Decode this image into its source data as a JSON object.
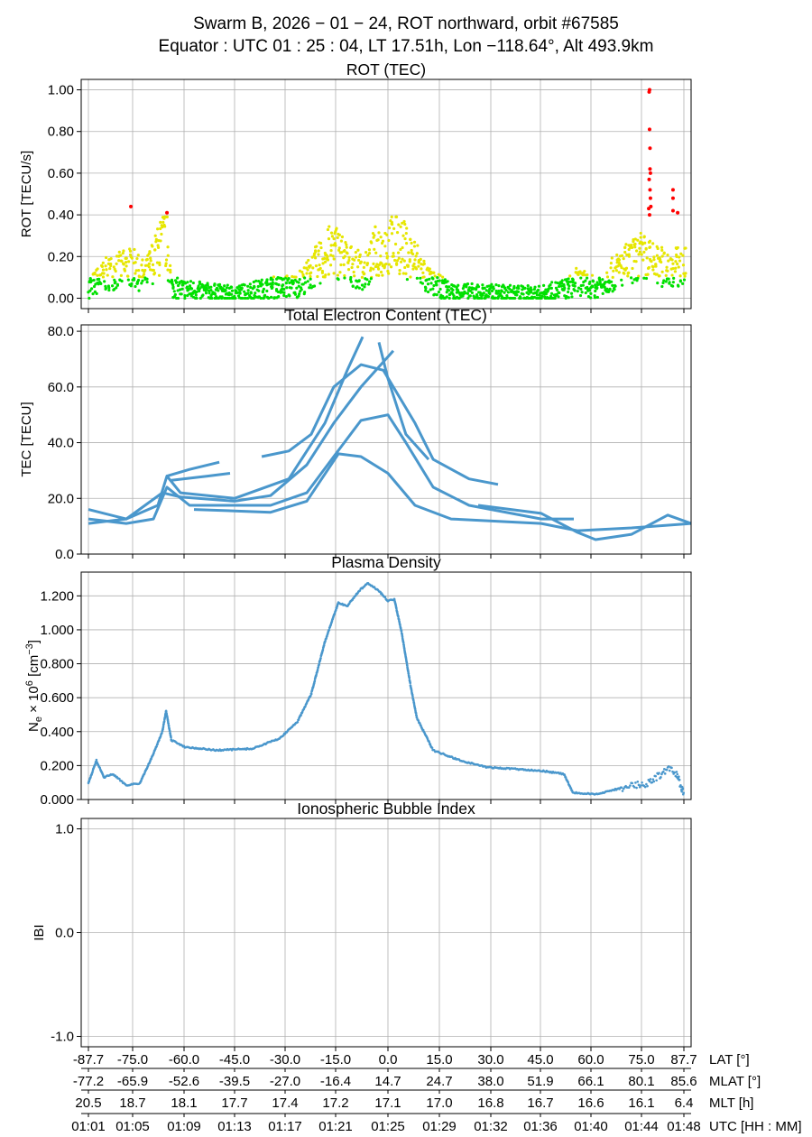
{
  "title": {
    "line1": "Swarm B,  2026 − 01 − 24,  ROT northward,  orbit #67585",
    "line2": "Equator :  UTC 01 : 25 : 04,  LT 17.51h,  Lon  −118.64°,  Alt 493.9km"
  },
  "colors": {
    "series": "#4a97cc",
    "rot_low": "#00e000",
    "rot_mid": "#e6e600",
    "rot_high": "#ff0000",
    "grid": "#b0b0b0"
  },
  "x_axis": {
    "rows": [
      {
        "label": "LAT [°]",
        "values": [
          "-87.7",
          "-75.0",
          "-60.0",
          "-45.0",
          "-30.0",
          "-15.0",
          "0.0",
          "15.0",
          "30.0",
          "45.0",
          "60.0",
          "75.0",
          "87.7"
        ]
      },
      {
        "label": "MLAT [°]",
        "values": [
          "-77.2",
          "-65.9",
          "-52.6",
          "-39.5",
          "-27.0",
          "-16.4",
          "14.7",
          "24.7",
          "38.0",
          "51.9",
          "66.1",
          "80.1",
          "85.6"
        ]
      },
      {
        "label": "MLT [h]",
        "values": [
          "20.5",
          "18.7",
          "18.1",
          "17.7",
          "17.4",
          "17.2",
          "17.1",
          "17.0",
          "16.8",
          "16.7",
          "16.6",
          "16.1",
          "6.4"
        ]
      },
      {
        "label": "UTC [HH : MM]",
        "values": [
          "01:01",
          "01:05",
          "01:09",
          "01:13",
          "01:17",
          "01:21",
          "01:25",
          "01:29",
          "01:32",
          "01:36",
          "01:40",
          "01:44",
          "01:48"
        ]
      }
    ]
  },
  "chart_data": [
    {
      "type": "scatter",
      "title": "ROT (TEC)",
      "ylabel": "ROT [TECU/s]",
      "ylim": [
        -0.05,
        1.05
      ],
      "yticks": [
        "0.00",
        "0.20",
        "0.40",
        "0.60",
        "0.80",
        "1.00"
      ],
      "grid": true,
      "color_thresholds": {
        "green_below": 0.1,
        "yellow_below": 0.4,
        "red_above": 0.4
      },
      "trend": [
        [
          "01:01:00",
          0.05
        ],
        [
          "01:02:34",
          0.12
        ],
        [
          "01:04:29",
          0.15
        ],
        [
          "01:05:25",
          0.1
        ],
        [
          "01:06:29",
          0.22
        ],
        [
          "01:07:12",
          0.3
        ],
        [
          "01:07:33",
          0.05
        ],
        [
          "01:10:24",
          0.03
        ],
        [
          "01:12:32",
          0.02
        ],
        [
          "01:15:23",
          0.05
        ],
        [
          "01:17:31",
          0.06
        ],
        [
          "01:18:57",
          0.15
        ],
        [
          "01:20:22",
          0.24
        ],
        [
          "01:21:48",
          0.15
        ],
        [
          "01:22:52",
          0.12
        ],
        [
          "01:23:35",
          0.22
        ],
        [
          "01:25:22",
          0.27
        ],
        [
          "01:26:47",
          0.18
        ],
        [
          "01:27:51",
          0.08
        ],
        [
          "01:29:38",
          0.03
        ],
        [
          "01:36:45",
          0.02
        ],
        [
          "01:38:54",
          0.05
        ],
        [
          "01:39:36",
          0.08
        ],
        [
          "01:41:02",
          0.05
        ],
        [
          "01:43:10",
          0.15
        ],
        [
          "01:44:40",
          0.2
        ],
        [
          "01:46:01",
          0.15
        ],
        [
          "01:48:09",
          0.15
        ]
      ],
      "high_points": [
        [
          "01:04:21",
          0.44
        ],
        [
          "01:07:12",
          0.41
        ],
        [
          "01:45:18",
          1.0
        ],
        [
          "01:45:16",
          0.99
        ],
        [
          "01:45:18",
          0.81
        ],
        [
          "01:45:20",
          0.72
        ],
        [
          "01:45:20",
          0.62
        ],
        [
          "01:45:22",
          0.6
        ],
        [
          "01:45:16",
          0.57
        ],
        [
          "01:45:20",
          0.52
        ],
        [
          "01:45:22",
          0.48
        ],
        [
          "01:45:24",
          0.44
        ],
        [
          "01:45:14",
          0.43
        ],
        [
          "01:45:18",
          0.4
        ],
        [
          "01:47:09",
          0.52
        ],
        [
          "01:47:09",
          0.48
        ],
        [
          "01:47:09",
          0.42
        ],
        [
          "01:47:31",
          0.41
        ]
      ]
    },
    {
      "type": "line",
      "title": "Total Electron Content (TEC)",
      "ylabel": "TEC [TECU]",
      "ylim": [
        0,
        82.3
      ],
      "yticks": [
        "0.0",
        "20.0",
        "40.0",
        "60.0",
        "80.0"
      ],
      "grid": true,
      "series": [
        {
          "points": [
            [
              "01:01:00",
              11
            ],
            [
              "01:03:59",
              12.6
            ],
            [
              "01:06:29",
              17.5
            ],
            [
              "01:07:12",
              28
            ],
            [
              "01:08:16",
              22
            ],
            [
              "01:12:32",
              20
            ],
            [
              "01:16:49",
              27
            ],
            [
              "01:19:40",
              47
            ],
            [
              "01:21:26",
              66
            ],
            [
              "01:22:39",
              78
            ]
          ]
        },
        {
          "points": [
            [
              "01:07:12",
              28
            ],
            [
              "01:08:59",
              30.4
            ],
            [
              "01:11:20",
              33
            ]
          ]
        },
        {
          "points": [
            [
              "01:07:33",
              26.5
            ],
            [
              "01:10:24",
              28
            ],
            [
              "01:12:11",
              29
            ]
          ]
        },
        {
          "points": [
            [
              "01:14:41",
              35
            ],
            [
              "01:16:49",
              37
            ],
            [
              "01:18:35",
              43
            ],
            [
              "01:20:22",
              60
            ],
            [
              "01:22:31",
              68
            ],
            [
              "01:24:17",
              66
            ],
            [
              "01:26:47",
              47
            ],
            [
              "01:28:13",
              34
            ],
            [
              "01:31:03",
              27
            ],
            [
              "01:33:20",
              25
            ]
          ]
        },
        {
          "points": [
            [
              "01:01:00",
              16
            ],
            [
              "01:03:59",
              12.6
            ],
            [
              "01:06:50",
              22
            ],
            [
              "01:08:16",
              20.5
            ],
            [
              "01:12:32",
              19
            ],
            [
              "01:15:23",
              21
            ],
            [
              "01:18:14",
              32
            ],
            [
              "01:20:22",
              47
            ],
            [
              "01:22:31",
              60
            ],
            [
              "01:25:04",
              73
            ]
          ]
        },
        {
          "points": [
            [
              "01:01:00",
              12.6
            ],
            [
              "01:03:59",
              11
            ],
            [
              "01:06:08",
              12.6
            ],
            [
              "01:07:12",
              24
            ],
            [
              "01:08:59",
              17.5
            ],
            [
              "01:15:23",
              17.5
            ],
            [
              "01:18:14",
              22
            ],
            [
              "01:20:22",
              35
            ],
            [
              "01:22:31",
              48
            ],
            [
              "01:24:39",
              50
            ],
            [
              "01:26:04",
              40
            ],
            [
              "01:28:13",
              24
            ],
            [
              "01:31:03",
              17.5
            ],
            [
              "01:36:45",
              12.6
            ],
            [
              "01:39:19",
              12.6
            ]
          ]
        },
        {
          "points": [
            [
              "01:09:20",
              16
            ],
            [
              "01:15:23",
              15
            ],
            [
              "01:18:14",
              19
            ],
            [
              "01:20:44",
              36
            ],
            [
              "01:22:31",
              35
            ],
            [
              "01:24:39",
              29
            ],
            [
              "01:26:47",
              17.5
            ],
            [
              "01:29:38",
              12.6
            ],
            [
              "01:36:45",
              11
            ],
            [
              "01:39:36",
              8.4
            ],
            [
              "01:43:53",
              9.4
            ],
            [
              "01:48:35",
              11
            ]
          ]
        },
        {
          "points": [
            [
              "01:31:46",
              17.5
            ],
            [
              "01:36:45",
              14.6
            ],
            [
              "01:39:36",
              7.8
            ],
            [
              "01:41:02",
              5.2
            ],
            [
              "01:43:53",
              7.1
            ],
            [
              "01:46:44",
              14
            ],
            [
              "01:48:35",
              11
            ]
          ]
        },
        {
          "points": [
            [
              "01:23:56",
              76
            ],
            [
              "01:24:39",
              63
            ],
            [
              "01:26:04",
              43
            ],
            [
              "01:27:51",
              34
            ]
          ]
        }
      ]
    },
    {
      "type": "scatter",
      "title": "Plasma Density",
      "ylabel": {
        "main": "N",
        "sub": "e",
        "mid": " × 10",
        "sup": "6",
        "unit": " [cm",
        "unit_sup": "−3",
        "end": "]"
      },
      "ylim": [
        0,
        1.34
      ],
      "yticks": [
        "0.000",
        "0.200",
        "0.400",
        "0.600",
        "0.800",
        "1.000",
        "1.200"
      ],
      "grid": true,
      "points": [
        [
          "01:01:00",
          0.096
        ],
        [
          "01:01:38",
          0.23
        ],
        [
          "01:02:13",
          0.13
        ],
        [
          "01:02:55",
          0.15
        ],
        [
          "01:03:59",
          0.085
        ],
        [
          "01:05:04",
          0.096
        ],
        [
          "01:06:08",
          0.27
        ],
        [
          "01:06:50",
          0.4
        ],
        [
          "01:07:08",
          0.52
        ],
        [
          "01:07:33",
          0.35
        ],
        [
          "01:08:37",
          0.31
        ],
        [
          "01:11:07",
          0.29
        ],
        [
          "01:13:58",
          0.3
        ],
        [
          "01:16:06",
          0.36
        ],
        [
          "01:17:31",
          0.46
        ],
        [
          "01:18:35",
          0.62
        ],
        [
          "01:19:40",
          0.93
        ],
        [
          "01:20:44",
          1.16
        ],
        [
          "01:21:26",
          1.14
        ],
        [
          "01:22:22",
          1.23
        ],
        [
          "01:23:05",
          1.275
        ],
        [
          "01:23:56",
          1.23
        ],
        [
          "01:24:39",
          1.17
        ],
        [
          "01:25:09",
          1.18
        ],
        [
          "01:25:43",
          0.99
        ],
        [
          "01:26:26",
          0.67
        ],
        [
          "01:26:56",
          0.48
        ],
        [
          "01:28:13",
          0.29
        ],
        [
          "01:30:21",
          0.23
        ],
        [
          "01:32:29",
          0.19
        ],
        [
          "01:36:45",
          0.17
        ],
        [
          "01:38:32",
          0.15
        ],
        [
          "01:39:15",
          0.04
        ],
        [
          "01:41:02",
          0.03
        ],
        [
          "01:43:10",
          0.07
        ],
        [
          "01:45:18",
          0.1
        ],
        [
          "01:46:44",
          0.18
        ],
        [
          "01:47:26",
          0.15
        ],
        [
          "01:48:01",
          0.03
        ]
      ]
    },
    {
      "type": "line",
      "title": "Ionospheric Bubble Index",
      "ylabel": "IBI",
      "ylim": [
        -1.1,
        1.1
      ],
      "yticks": [
        "-1.0",
        "0.0",
        "1.0"
      ],
      "grid": true,
      "series": []
    }
  ]
}
